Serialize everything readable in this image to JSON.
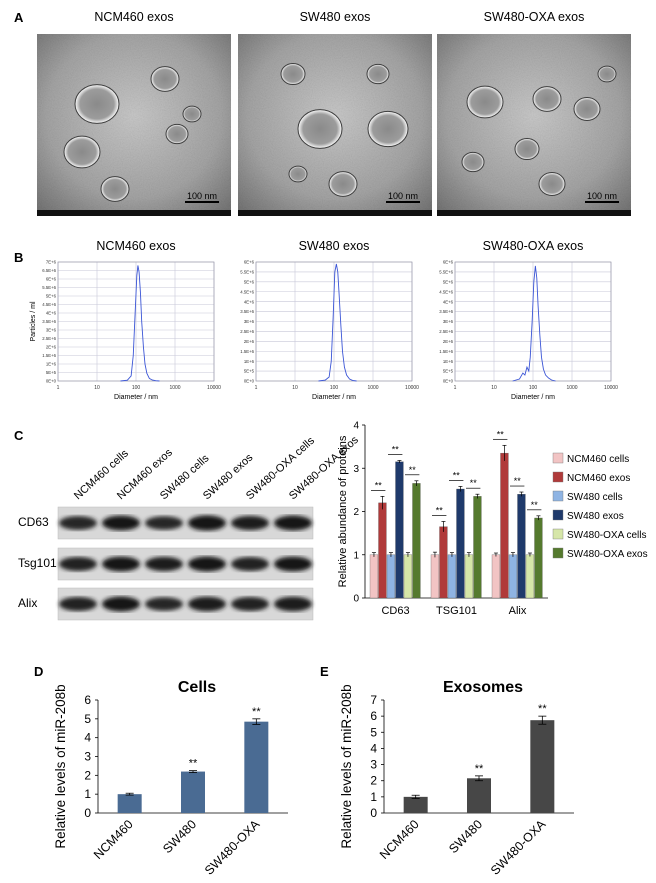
{
  "panels": {
    "A": {
      "letter": "A",
      "images": [
        {
          "title": "NCM460 exos",
          "scale": "100 nm"
        },
        {
          "title": "SW480 exos",
          "scale": "100 nm"
        },
        {
          "title": "SW480-OXA exos",
          "scale": "100 nm"
        }
      ]
    },
    "B": {
      "letter": "B"
    },
    "C": {
      "letter": "C",
      "lanes": [
        "NCM460 cells",
        "NCM460 exos",
        "SW480 cells",
        "SW480 exos",
        "SW480-OXA cells",
        "SW480-OXA exos"
      ],
      "rows": [
        "CD63",
        "Tsg101",
        "Alix"
      ],
      "band_intensity": [
        [
          0.55,
          0.75,
          0.5,
          0.85,
          0.65,
          0.8
        ],
        [
          0.6,
          0.75,
          0.65,
          0.8,
          0.6,
          0.75
        ],
        [
          0.6,
          0.8,
          0.5,
          0.7,
          0.6,
          0.7
        ]
      ]
    },
    "D": {
      "letter": "D"
    },
    "E": {
      "letter": "E"
    }
  },
  "chart_data": [
    {
      "type": "line",
      "panel": "B",
      "title": "NCM460 exos",
      "xlabel": "Diameter / nm",
      "ylabel": "Particles / ml",
      "xscale": "log",
      "xlim": [
        1,
        10000
      ],
      "xticks": [
        "1",
        "10",
        "100",
        "1000",
        "10000"
      ],
      "ylim": [
        0,
        7
      ],
      "yticks": [
        "0E+0",
        "5E+5",
        "1E+6",
        "1.5E+6",
        "2E+6",
        "2.5E+6",
        "3E+6",
        "3.5E+6",
        "4E+6",
        "4.5E+6",
        "5E+6",
        "5.5E+6",
        "6E+6",
        "6.5E+6",
        "7E+6"
      ],
      "x": [
        40,
        60,
        75,
        85,
        95,
        105,
        112,
        120,
        130,
        140,
        155,
        170,
        190,
        220,
        260,
        320,
        400
      ],
      "values": [
        0,
        0.05,
        0.3,
        1.5,
        4.0,
        6.2,
        6.8,
        6.4,
        5.2,
        3.5,
        2.0,
        1.0,
        0.45,
        0.15,
        0.06,
        0.02,
        0
      ]
    },
    {
      "type": "line",
      "panel": "B",
      "title": "SW480 exos",
      "xlabel": "Diameter / nm",
      "ylabel": "",
      "xscale": "log",
      "xlim": [
        1,
        10000
      ],
      "xticks": [
        "1",
        "10",
        "100",
        "1000",
        "10000"
      ],
      "ylim": [
        0,
        6
      ],
      "yticks": [
        "0E+0",
        "5E+5",
        "1E+6",
        "1.5E+6",
        "2E+6",
        "2.5E+6",
        "3E+6",
        "3.5E+6",
        "4E+6",
        "4.5E+6",
        "5E+6",
        "5.5E+6",
        "6E+6"
      ],
      "x": [
        40,
        60,
        75,
        85,
        95,
        105,
        115,
        125,
        135,
        150,
        165,
        185,
        210,
        250,
        300,
        380
      ],
      "values": [
        0,
        0.05,
        0.2,
        1.0,
        3.2,
        5.5,
        5.9,
        5.5,
        4.4,
        2.8,
        1.5,
        0.7,
        0.3,
        0.1,
        0.03,
        0
      ]
    },
    {
      "type": "line",
      "panel": "B",
      "title": "SW480-OXA exos",
      "xlabel": "Diameter / nm",
      "ylabel": "",
      "xscale": "log",
      "xlim": [
        1,
        10000
      ],
      "xticks": [
        "1",
        "10",
        "100",
        "1000",
        "10000"
      ],
      "ylim": [
        0,
        6
      ],
      "yticks": [
        "0E+0",
        "5E+5",
        "1E+6",
        "1.5E+6",
        "2E+6",
        "2.5E+6",
        "3E+6",
        "3.5E+6",
        "4E+6",
        "4.5E+6",
        "5E+6",
        "5.5E+6",
        "6E+6"
      ],
      "x": [
        30,
        45,
        55,
        62,
        70,
        78,
        85,
        95,
        105,
        115,
        125,
        135,
        150,
        165,
        185,
        210,
        250,
        300,
        380
      ],
      "values": [
        0,
        0.1,
        0.4,
        0.3,
        0.7,
        0.5,
        1.2,
        3.0,
        5.0,
        5.8,
        5.2,
        3.8,
        2.3,
        1.2,
        0.6,
        0.3,
        0.15,
        0.05,
        0
      ]
    },
    {
      "type": "bar",
      "panel": "C",
      "title": "",
      "xlabel": "",
      "ylabel": "Relative abundance of proteins",
      "ylim": [
        0,
        4
      ],
      "yticks": [
        "0",
        "1",
        "2",
        "3",
        "4"
      ],
      "categories": [
        "CD63",
        "TSG101",
        "Alix"
      ],
      "legend_position": "right",
      "significance": "**",
      "series": [
        {
          "name": "NCM460 cells",
          "color": "#f2c4c4",
          "values": [
            1.0,
            1.0,
            1.0
          ],
          "errors": [
            0.05,
            0.06,
            0.04
          ]
        },
        {
          "name": "NCM460 exos",
          "color": "#b03a3a",
          "values": [
            2.2,
            1.65,
            3.35
          ],
          "errors": [
            0.15,
            0.12,
            0.18
          ]
        },
        {
          "name": "SW480 cells",
          "color": "#8fb4e3",
          "values": [
            1.0,
            1.0,
            1.0
          ],
          "errors": [
            0.05,
            0.05,
            0.05
          ]
        },
        {
          "name": "SW480 exos",
          "color": "#1f3a6b",
          "values": [
            3.15,
            2.52,
            2.4
          ],
          "errors": [
            0.03,
            0.06,
            0.05
          ]
        },
        {
          "name": "SW480-OXA cells",
          "color": "#d6e6a8",
          "values": [
            1.0,
            1.0,
            1.0
          ],
          "errors": [
            0.05,
            0.05,
            0.04
          ]
        },
        {
          "name": "SW480-OXA exos",
          "color": "#557a2e",
          "values": [
            2.65,
            2.35,
            1.85
          ],
          "errors": [
            0.06,
            0.05,
            0.05
          ]
        }
      ]
    },
    {
      "type": "bar",
      "panel": "D",
      "title": "Cells",
      "xlabel": "",
      "ylabel": "Relative levels of miR-208b",
      "ylim": [
        0,
        6
      ],
      "yticks": [
        "0",
        "1",
        "2",
        "3",
        "4",
        "5",
        "6"
      ],
      "categories": [
        "NCM460",
        "SW480",
        "SW480-OXA"
      ],
      "values": [
        1.0,
        2.2,
        4.85
      ],
      "errors": [
        0.05,
        0.05,
        0.15
      ],
      "annotations": [
        "",
        "**",
        "**"
      ],
      "color": "#4a6b93"
    },
    {
      "type": "bar",
      "panel": "E",
      "title": "Exosomes",
      "xlabel": "",
      "ylabel": "Relative levels of miR-208b",
      "ylim": [
        0,
        7
      ],
      "yticks": [
        "0",
        "1",
        "2",
        "3",
        "4",
        "5",
        "6",
        "7"
      ],
      "categories": [
        "NCM460",
        "SW480",
        "SW480-OXA"
      ],
      "values": [
        1.0,
        2.15,
        5.75
      ],
      "errors": [
        0.1,
        0.15,
        0.25
      ],
      "annotations": [
        "",
        "**",
        "**"
      ],
      "color": "#474747"
    }
  ]
}
